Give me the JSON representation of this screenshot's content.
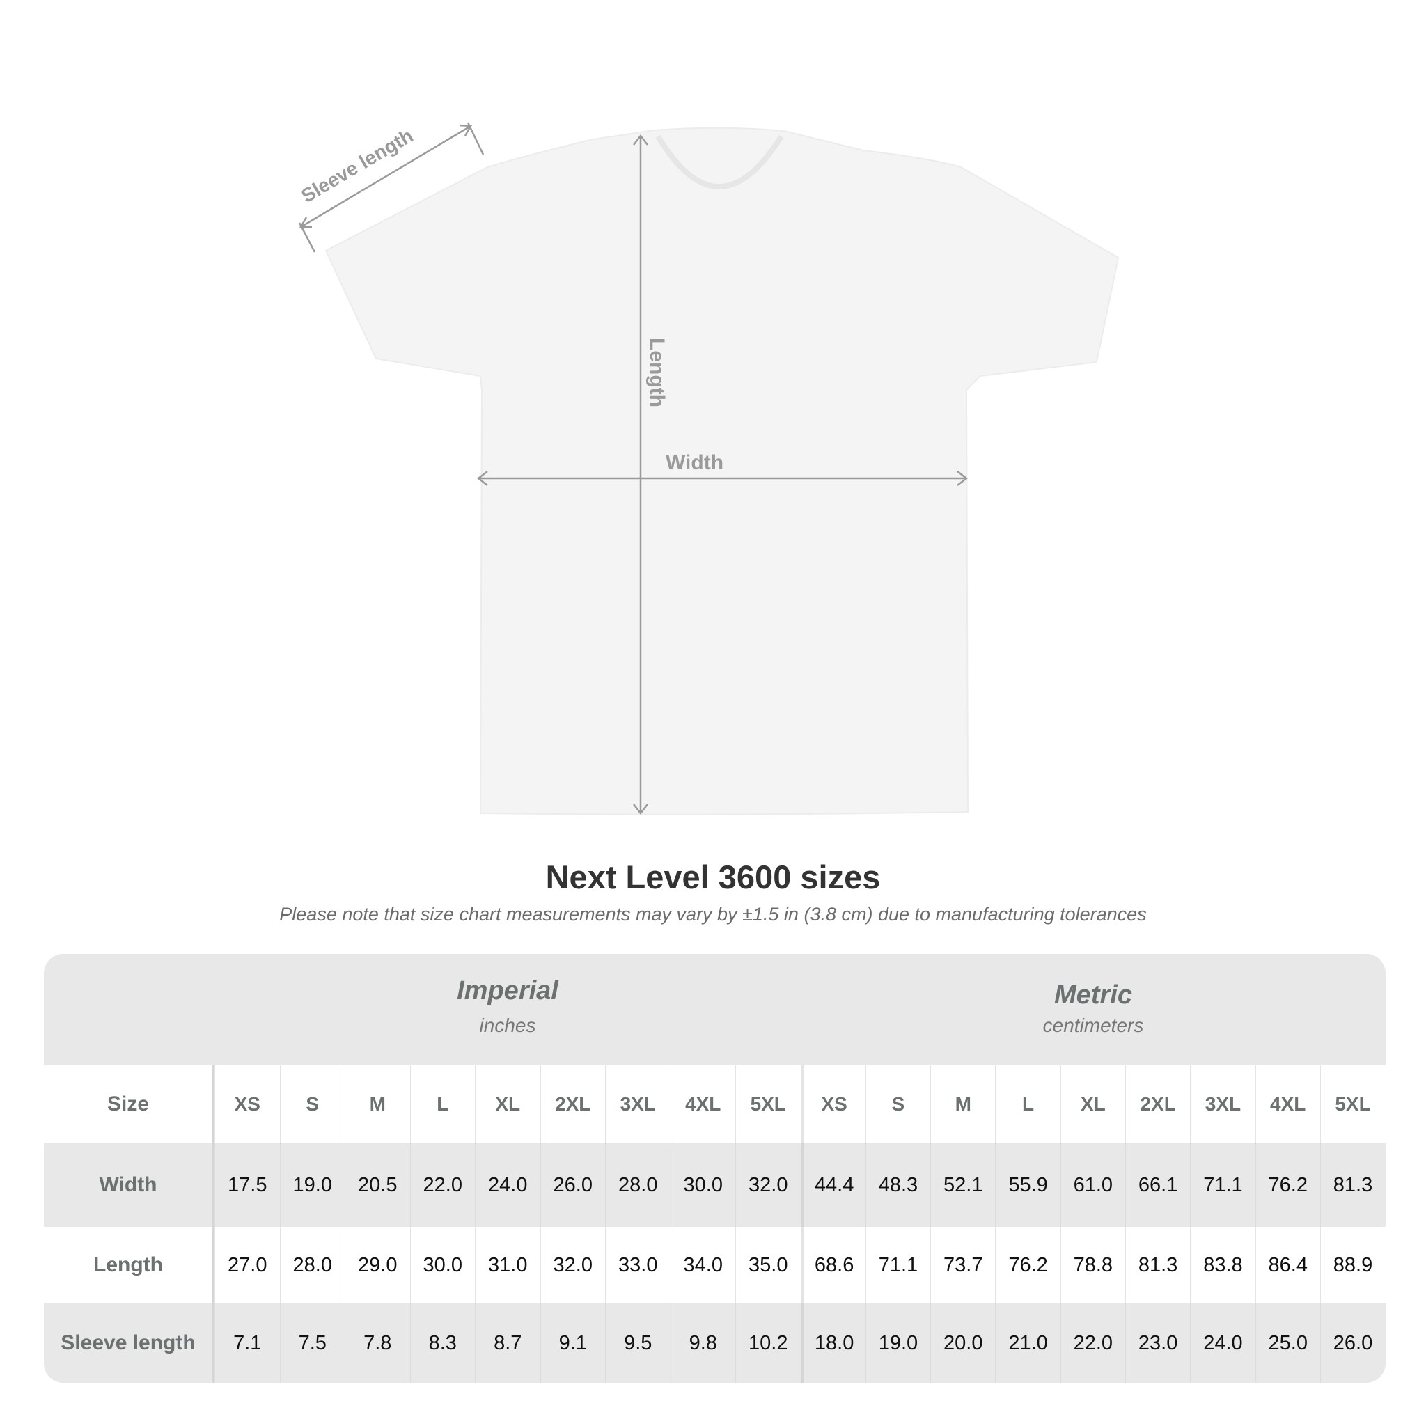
{
  "diagram": {
    "labels": {
      "sleeve": "Sleeve length",
      "length": "Length",
      "width": "Width"
    },
    "colors": {
      "shirt": "#f4f4f4",
      "arrow": "#9a9a9a"
    }
  },
  "title": "Next Level 3600 sizes",
  "subtitle": "Please note that size chart measurements may vary by ±1.5 in (3.8 cm) due to manufacturing tolerances",
  "table": {
    "imperial": {
      "name": "Imperial",
      "unit": "inches"
    },
    "metric": {
      "name": "Metric",
      "unit": "centimeters"
    },
    "size_label": "Size",
    "sizes": [
      "XS",
      "S",
      "M",
      "L",
      "XL",
      "2XL",
      "3XL",
      "4XL",
      "5XL"
    ],
    "rows": [
      {
        "label": "Width",
        "imperial": [
          "17.5",
          "19.0",
          "20.5",
          "22.0",
          "24.0",
          "26.0",
          "28.0",
          "30.0",
          "32.0"
        ],
        "metric": [
          "44.4",
          "48.3",
          "52.1",
          "55.9",
          "61.0",
          "66.1",
          "71.1",
          "76.2",
          "81.3"
        ]
      },
      {
        "label": "Length",
        "imperial": [
          "27.0",
          "28.0",
          "29.0",
          "30.0",
          "31.0",
          "32.0",
          "33.0",
          "34.0",
          "35.0"
        ],
        "metric": [
          "68.6",
          "71.1",
          "73.7",
          "76.2",
          "78.8",
          "81.3",
          "83.8",
          "86.4",
          "88.9"
        ]
      },
      {
        "label": "Sleeve length",
        "imperial": [
          "7.1",
          "7.5",
          "7.8",
          "8.3",
          "8.7",
          "9.1",
          "9.5",
          "9.8",
          "10.2"
        ],
        "metric": [
          "18.0",
          "19.0",
          "20.0",
          "21.0",
          "22.0",
          "23.0",
          "24.0",
          "25.0",
          "26.0"
        ]
      }
    ]
  }
}
